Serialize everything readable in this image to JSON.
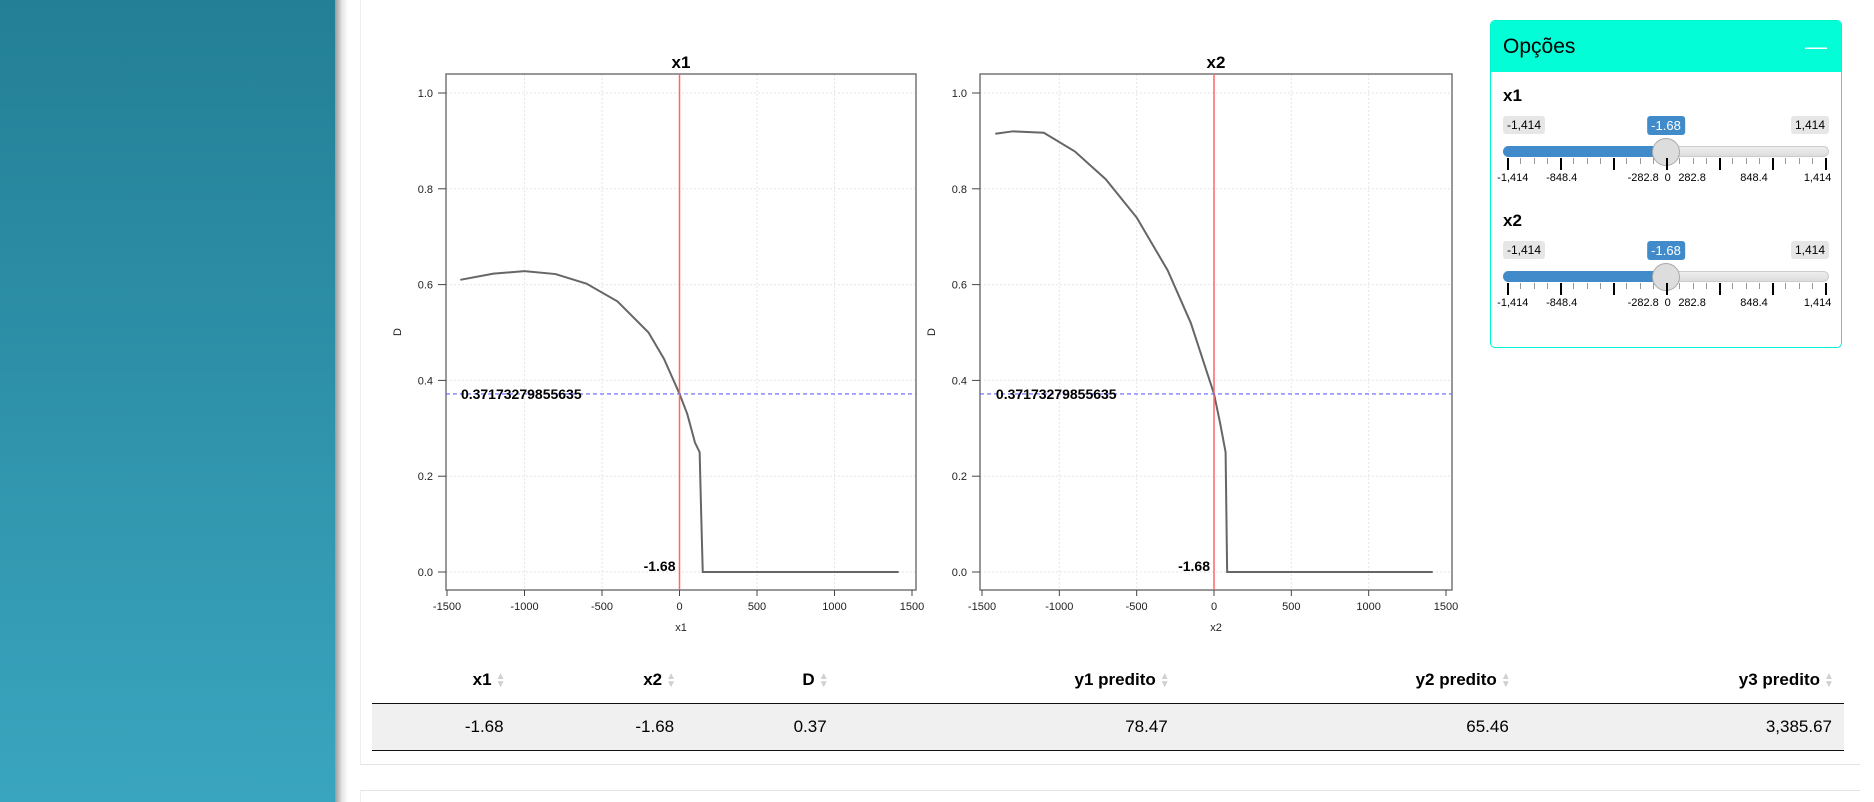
{
  "options": {
    "title": "Opções",
    "minimize_icon": "minus-icon",
    "sliders": [
      {
        "label": "x1",
        "min": "-1,414",
        "max": "1,414",
        "value": "-1.68",
        "handle_fraction": 0.5,
        "grid": [
          "-1,414",
          "-848.4",
          "-282.8",
          "0",
          "282.8",
          "848.4",
          "1,414"
        ]
      },
      {
        "label": "x2",
        "min": "-1,414",
        "max": "1,414",
        "value": "-1.68",
        "handle_fraction": 0.5,
        "grid": [
          "-1,414",
          "-848.4",
          "-282.8",
          "0",
          "282.8",
          "848.4",
          "1,414"
        ]
      }
    ]
  },
  "table": {
    "headers": [
      "x1",
      "x2",
      "D",
      "y1 predito",
      "y2 predito",
      "y3 predito"
    ],
    "rows": [
      [
        "-1.68",
        "-1.68",
        "0.37",
        "78.47",
        "65.46",
        "3,385.67"
      ]
    ]
  },
  "chart_data": [
    {
      "type": "line",
      "title": "x1",
      "xlabel": "x1",
      "ylabel": "D",
      "xlim": [
        -1500,
        1500
      ],
      "ylim": [
        0,
        1
      ],
      "xticks": [
        "-1500",
        "-1000",
        "-500",
        "0",
        "500",
        "1000",
        "1500"
      ],
      "yticks": [
        "0.0",
        "0.2",
        "0.4",
        "0.6",
        "0.8",
        "1.0"
      ],
      "x": [
        -1414,
        -1200,
        -1000,
        -800,
        -600,
        -400,
        -200,
        -100,
        0,
        50,
        100,
        130,
        140,
        150,
        1414
      ],
      "y": [
        0.61,
        0.623,
        0.628,
        0.622,
        0.602,
        0.565,
        0.5,
        0.445,
        0.372,
        0.33,
        0.27,
        0.25,
        0.12,
        0.0,
        0.0
      ],
      "vline": 0,
      "vline_label": "-1.68",
      "hline": 0.37173279855635,
      "hline_label": "0.37173279855635",
      "colors": {
        "line": "#666666",
        "vline": "#ff6666",
        "hline": "#6666ff"
      }
    },
    {
      "type": "line",
      "title": "x2",
      "xlabel": "x2",
      "ylabel": "D",
      "xlim": [
        -1500,
        1500
      ],
      "ylim": [
        0,
        1
      ],
      "xticks": [
        "-1500",
        "-1000",
        "-500",
        "0",
        "500",
        "1000",
        "1500"
      ],
      "yticks": [
        "0.0",
        "0.2",
        "0.4",
        "0.6",
        "0.8",
        "1.0"
      ],
      "x": [
        -1414,
        -1300,
        -1100,
        -900,
        -700,
        -500,
        -300,
        -150,
        0,
        40,
        75,
        85,
        1414
      ],
      "y": [
        0.915,
        0.92,
        0.917,
        0.878,
        0.82,
        0.74,
        0.63,
        0.52,
        0.372,
        0.31,
        0.25,
        0.0,
        0.0
      ],
      "vline": 0,
      "vline_label": "-1.68",
      "hline": 0.37173279855635,
      "hline_label": "0.37173279855635",
      "colors": {
        "line": "#666666",
        "vline": "#ff6666",
        "hline": "#6666ff"
      }
    }
  ]
}
